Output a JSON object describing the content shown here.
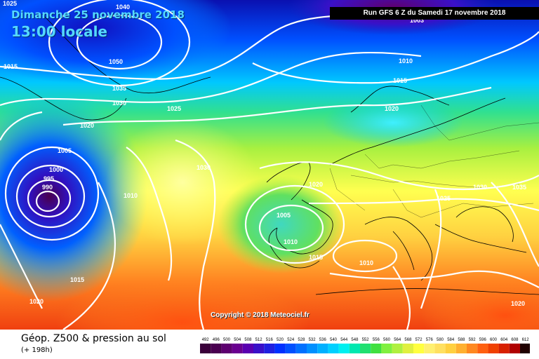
{
  "header": {
    "date_label": "Dimanche 25 novembre 2018",
    "time_label": "13:00 locale",
    "run_label": "Run GFS 6 Z du Samedi 17 novembre 2018"
  },
  "map": {
    "isobar_labels": [
      "1025",
      "1040",
      "1050",
      "1015",
      "1035",
      "1030",
      "1025",
      "1020",
      "1010",
      "1015",
      "1020",
      "1005",
      "1000",
      "995",
      "990",
      "1030",
      "1010",
      "1020",
      "1005",
      "1010",
      "1015",
      "1010",
      "1030",
      "1035",
      "1025",
      "1015",
      "1020",
      "1020",
      "1003"
    ],
    "copyright": "Copyright © 2018 Meteociel.fr"
  },
  "footer": {
    "title": "Géop. Z500 & pression au sol",
    "subtitle": "(+ 198h)"
  },
  "legend": {
    "values": [
      "492",
      "496",
      "500",
      "504",
      "508",
      "512",
      "516",
      "520",
      "524",
      "528",
      "532",
      "536",
      "540",
      "544",
      "548",
      "552",
      "556",
      "560",
      "564",
      "568",
      "572",
      "576",
      "580",
      "584",
      "588",
      "592",
      "596",
      "600",
      "604",
      "608",
      "612"
    ],
    "colors": [
      "#3a003a",
      "#4a0050",
      "#5e0070",
      "#6a0090",
      "#5a00b0",
      "#3a10c8",
      "#2020e0",
      "#0030ff",
      "#0050ff",
      "#0070ff",
      "#0090ff",
      "#00b0ff",
      "#00d0ff",
      "#00f0f0",
      "#00e8b0",
      "#20e070",
      "#40e040",
      "#80f040",
      "#b0f040",
      "#e0f040",
      "#ffff40",
      "#fff070",
      "#ffe060",
      "#ffd040",
      "#ffb030",
      "#ff8820",
      "#ff6010",
      "#f04000",
      "#d82000",
      "#b00000",
      "#200000"
    ]
  }
}
